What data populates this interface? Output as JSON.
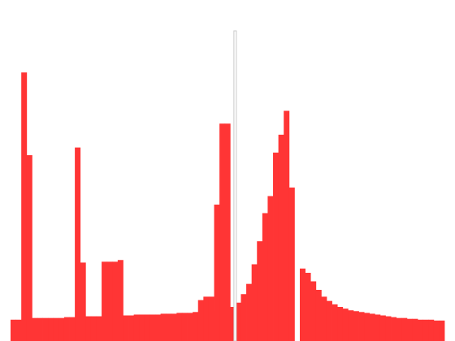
{
  "chart_data": {
    "type": "bar",
    "title": "",
    "xlabel": "",
    "ylabel": "",
    "x": [
      0,
      1,
      2,
      3,
      4,
      5,
      6,
      7,
      8,
      9,
      10,
      11,
      12,
      13,
      14,
      15,
      16,
      17,
      18,
      19,
      20,
      21,
      22,
      23,
      24,
      25,
      26,
      27,
      28,
      29,
      30,
      31,
      32,
      33,
      34,
      35,
      36,
      37,
      38,
      39,
      40,
      41,
      42,
      43,
      44,
      45,
      46,
      47,
      48,
      49,
      50,
      51,
      52,
      53,
      54,
      55,
      56,
      57,
      58,
      59,
      60,
      61,
      62,
      63,
      64,
      65,
      66,
      67,
      68,
      69,
      70,
      71,
      72,
      73,
      74,
      75,
      76,
      77,
      78,
      79,
      80
    ],
    "values": [
      25,
      25,
      315,
      218,
      27,
      27,
      27,
      27,
      27,
      27,
      28,
      28,
      28,
      28,
      29,
      29,
      29,
      29,
      30,
      30,
      30,
      30,
      30,
      31,
      31,
      31,
      31,
      31,
      32,
      32,
      32,
      33,
      33,
      33,
      34,
      34,
      34,
      35,
      35,
      35,
      37,
      40,
      45,
      55,
      67,
      90,
      117,
      150,
      170,
      221,
      242,
      270,
      180,
      0,
      85,
      80,
      70,
      60,
      52,
      47,
      43,
      40,
      38,
      36,
      35,
      34,
      33,
      32,
      31,
      30,
      29,
      28,
      27,
      27,
      26,
      26,
      25,
      25,
      25,
      24,
      24
    ],
    "overlays": [
      {
        "index": 12,
        "value": 227
      },
      {
        "index": 13,
        "value": 92
      },
      {
        "index": 17,
        "value": 93
      },
      {
        "index": 18,
        "value": 93
      },
      {
        "index": 19,
        "value": 93
      },
      {
        "index": 20,
        "value": 95
      },
      {
        "index": 35,
        "value": 48
      },
      {
        "index": 36,
        "value": 52
      },
      {
        "index": 37,
        "value": 52
      },
      {
        "index": 38,
        "value": 160
      },
      {
        "index": 39,
        "value": 255
      },
      {
        "index": 40,
        "value": 255
      }
    ],
    "ylim": [
      0,
      400
    ],
    "bar_color": "#ff3535",
    "marker": {
      "index": 42,
      "color": "#c8c8c8"
    }
  }
}
